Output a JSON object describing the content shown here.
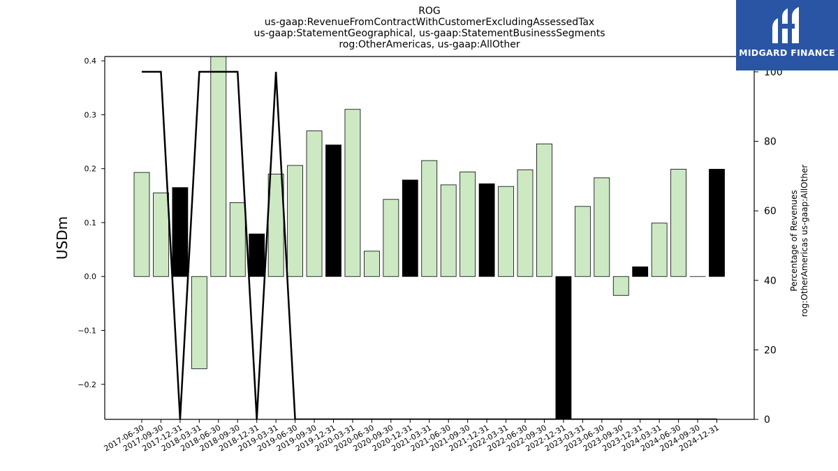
{
  "logo": {
    "text": "MIDGARD FINANCE"
  },
  "chart_data": {
    "type": "bar",
    "title_lines": [
      "ROG",
      "us-gaap:RevenueFromContractWithCustomerExcludingAssessedTax",
      "us-gaap:StatementGeographical, us-gaap:StatementBusinessSegments",
      "rog:OtherAmericas, us-gaap:AllOther"
    ],
    "ylabel": "USDm",
    "y2label_lines": [
      "Percentage of Revenues",
      "rog:OtherAmericas us-gaap:AllOther"
    ],
    "ylim": [
      -0.265,
      0.408
    ],
    "y2lim": [
      0,
      104.4
    ],
    "yticks": [
      -0.2,
      -0.1,
      0.0,
      0.1,
      0.2,
      0.3,
      0.4
    ],
    "yticklabels": [
      "−0.2",
      "−0.1",
      "0.0",
      "0.1",
      "0.2",
      "0.3",
      "0.4"
    ],
    "y2ticks": [
      0,
      20,
      40,
      60,
      80,
      100
    ],
    "y2ticklabels": [
      "0",
      "20",
      "40",
      "60",
      "80",
      "100"
    ],
    "colors": {
      "bar": "#cce9c4",
      "q4_bar": "#000000",
      "line": "#000000"
    },
    "categories": [
      "2017-06-30",
      "2017-09-30",
      "2017-12-31",
      "2018-03-31",
      "2018-06-30",
      "2018-09-30",
      "2018-12-31",
      "2019-03-31",
      "2019-06-30",
      "2019-09-30",
      "2019-12-31",
      "2020-03-31",
      "2020-06-30",
      "2020-09-30",
      "2020-12-31",
      "2021-03-31",
      "2021-06-30",
      "2021-09-30",
      "2021-12-31",
      "2022-03-31",
      "2022-06-30",
      "2022-09-30",
      "2022-12-31",
      "2023-03-31",
      "2023-06-30",
      "2023-09-30",
      "2023-12-31",
      "2024-03-31",
      "2024-06-30",
      "2024-09-30",
      "2024-12-31"
    ],
    "series": [
      {
        "type": "bar",
        "values": [
          0.193,
          0.155,
          0.165,
          -0.171,
          0.411,
          0.137,
          0.079,
          0.19,
          0.206,
          0.27,
          0.244,
          0.31,
          0.047,
          0.143,
          0.179,
          0.215,
          0.17,
          0.194,
          0.172,
          0.167,
          0.198,
          0.246,
          -0.265,
          0.13,
          0.183,
          -0.035,
          0.018,
          0.099,
          0.199,
          0.0,
          0.199
        ],
        "highlight": [
          false,
          false,
          true,
          false,
          false,
          false,
          true,
          false,
          false,
          false,
          true,
          false,
          false,
          false,
          true,
          false,
          false,
          false,
          true,
          false,
          false,
          false,
          true,
          false,
          false,
          false,
          true,
          false,
          false,
          false,
          true
        ]
      },
      {
        "type": "line",
        "axis": "right",
        "values": [
          100,
          100,
          0,
          100,
          100,
          100,
          0,
          100,
          0,
          0,
          0,
          0,
          0,
          0,
          0,
          0,
          0,
          0,
          0,
          0,
          0,
          0,
          0,
          0,
          0,
          0,
          0,
          0,
          0,
          0,
          0
        ]
      }
    ]
  }
}
